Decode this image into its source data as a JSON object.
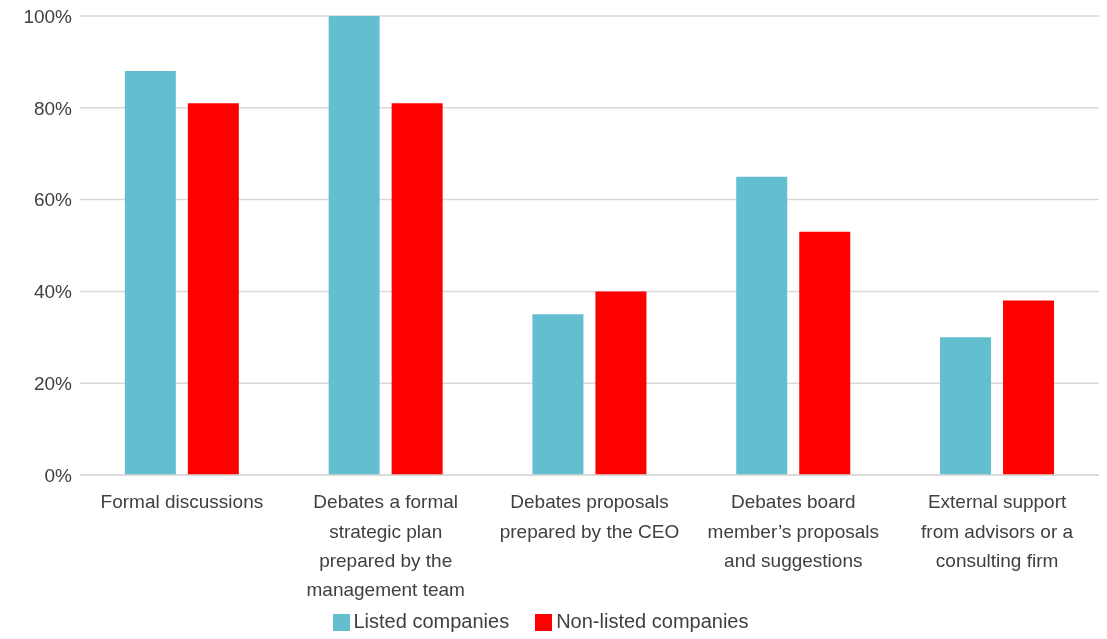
{
  "chart_data": {
    "type": "bar",
    "categories": [
      "Formal discussions",
      "Debates a formal strategic plan prepared by the management team",
      "Debates proposals prepared by the CEO",
      "Debates board member’s proposals and suggestions",
      "External support from advisors or a consulting firm"
    ],
    "series": [
      {
        "name": "Listed companies",
        "color": "#63bfd0",
        "values": [
          88,
          100,
          35,
          65,
          30
        ]
      },
      {
        "name": "Non-listed companies",
        "color": "#ff0000",
        "values": [
          81,
          81,
          40,
          53,
          38
        ]
      }
    ],
    "ylim": [
      0,
      100
    ],
    "yticks": [
      {
        "value": 0,
        "label": "0%"
      },
      {
        "value": 20,
        "label": "20%"
      },
      {
        "value": 40,
        "label": "40%"
      },
      {
        "value": 60,
        "label": "60%"
      },
      {
        "value": 80,
        "label": "80%"
      },
      {
        "value": 100,
        "label": "100%"
      }
    ],
    "grid": "y",
    "legend": "bottom"
  }
}
